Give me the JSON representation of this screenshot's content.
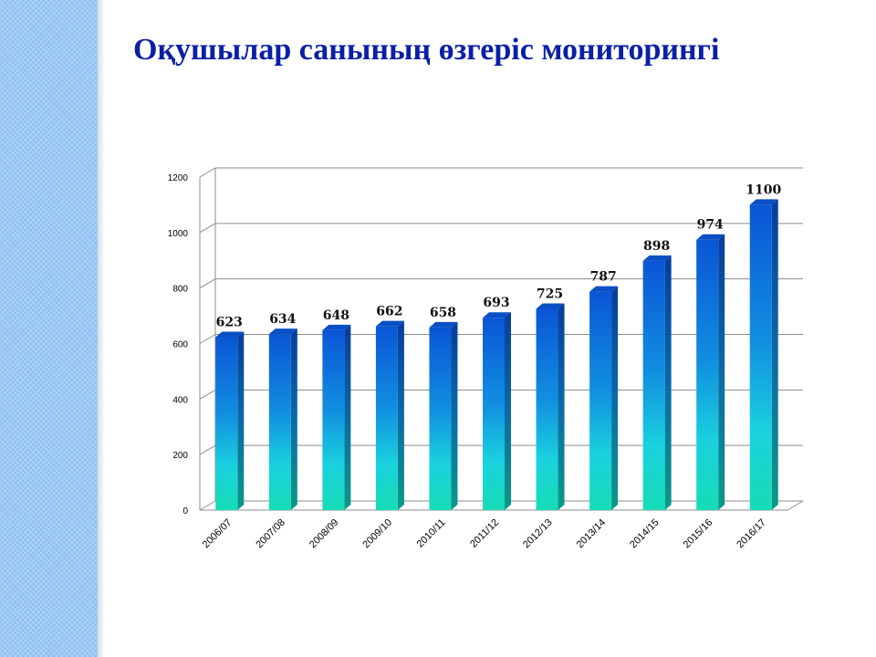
{
  "slide": {
    "title": "Оқушылар санының өзгеріс мониторингі",
    "accent_color": "#0b1fa6",
    "side_band_color": "#8fc0f3"
  },
  "chart_data": {
    "type": "bar",
    "style": "3d-columns",
    "title": "",
    "xlabel": "",
    "ylabel": "",
    "categories": [
      "2006/07",
      "2007/08",
      "2008/09",
      "2009/10",
      "2010/11",
      "2011/12",
      "2012/13",
      "2013/14",
      "2014/15",
      "2015/16",
      "2016/17"
    ],
    "values": [
      623,
      634,
      648,
      662,
      658,
      693,
      725,
      787,
      898,
      974,
      1100
    ],
    "ylim": [
      0,
      1200
    ],
    "yticks": [
      0,
      200,
      400,
      600,
      800,
      1000,
      1200
    ],
    "grid": true,
    "legend": "none",
    "data_labels": true,
    "bar_gradient": [
      "#0a5fd8",
      "#1fe0d0"
    ]
  }
}
